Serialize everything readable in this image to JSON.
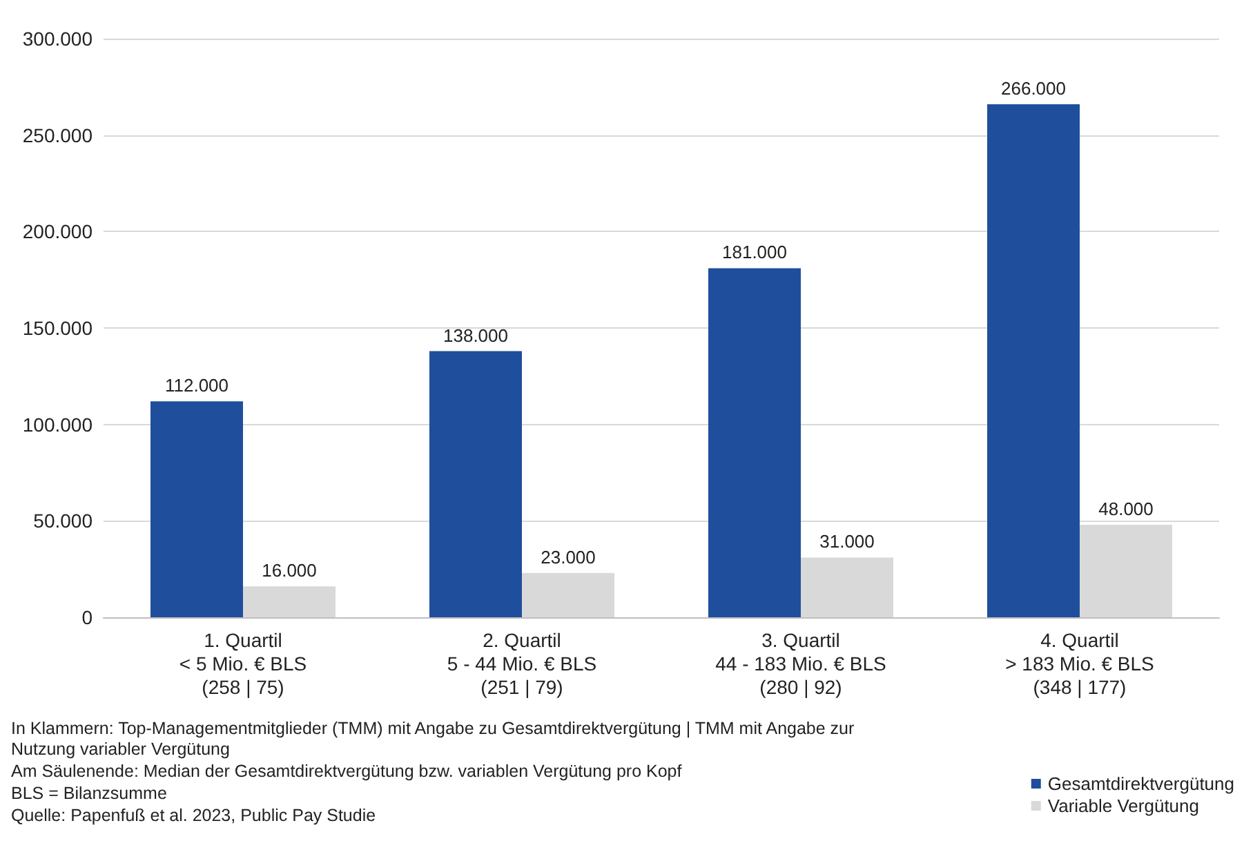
{
  "chart_data": {
    "type": "bar",
    "categories": [
      "1. Quartil\n< 5 Mio. € BLS\n(258 | 75)",
      "2. Quartil\n5 - 44 Mio. € BLS\n(251 | 79)",
      "3. Quartil\n44 - 183 Mio. € BLS\n(280 | 92)",
      "4. Quartil\n> 183 Mio. € BLS\n(348 | 177)"
    ],
    "series": [
      {
        "name": "Gesamtdirektvergütung",
        "color": "#1f4e9c",
        "values": [
          112000,
          138000,
          181000,
          266000
        ],
        "value_labels": [
          "112.000",
          "138.000",
          "181.000",
          "266.000"
        ]
      },
      {
        "name": "Variable Vergütung",
        "color": "#d9d9d9",
        "values": [
          16000,
          23000,
          31000,
          48000
        ],
        "value_labels": [
          "16.000",
          "23.000",
          "31.000",
          "48.000"
        ]
      }
    ],
    "ylim": [
      0,
      300000
    ],
    "yticks": [
      {
        "value": 0,
        "label": "0"
      },
      {
        "value": 50000,
        "label": "50.000"
      },
      {
        "value": 100000,
        "label": "100.000"
      },
      {
        "value": 150000,
        "label": "150.000"
      },
      {
        "value": 200000,
        "label": "200.000"
      },
      {
        "value": 250000,
        "label": "250.000"
      },
      {
        "value": 300000,
        "label": "300.000"
      }
    ],
    "grid": "y",
    "legend": "bottom right",
    "annotations": [
      "In Klammern: Top-Managementmitglieder (TMM) mit Angabe zu Gesamtdirektvergütung | TMM mit Angabe zur\nNutzung variabler Vergütung",
      "Am Säulenende: Median der Gesamtdirektvergütung bzw. variablen Vergütung pro Kopf",
      "BLS = Bilanzsumme",
      "Quelle: Papenfuß et al. 2023, Public Pay Studie"
    ]
  }
}
